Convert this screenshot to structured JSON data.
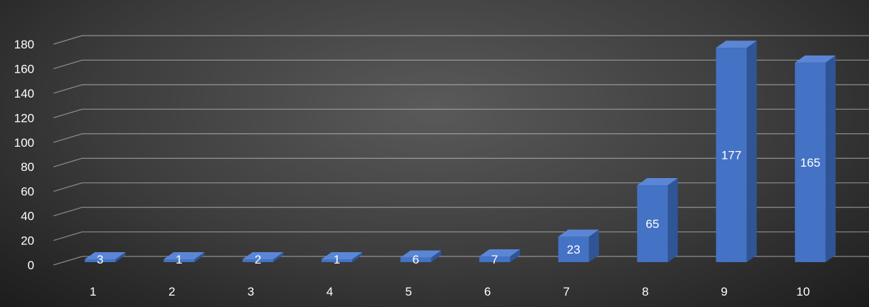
{
  "chart_data": {
    "type": "bar",
    "style": "3d-column",
    "categories": [
      "1",
      "2",
      "3",
      "4",
      "5",
      "6",
      "7",
      "8",
      "9",
      "10"
    ],
    "series": [
      {
        "values": [
          3,
          1,
          2,
          1,
          6,
          7,
          23,
          65,
          177,
          165
        ]
      }
    ],
    "ylim": [
      0,
      180
    ],
    "yticks": [
      0,
      20,
      40,
      60,
      80,
      100,
      120,
      140,
      160,
      180
    ],
    "title": "",
    "xlabel": "",
    "ylabel": "",
    "grid": true,
    "legend": "none",
    "data_labels": true
  },
  "colors": {
    "bar_front": "#4472c4",
    "bar_side": "#2f5597",
    "bar_top": "#5b86d6",
    "gridline": "#d9d9d9",
    "text": "#ffffff"
  }
}
